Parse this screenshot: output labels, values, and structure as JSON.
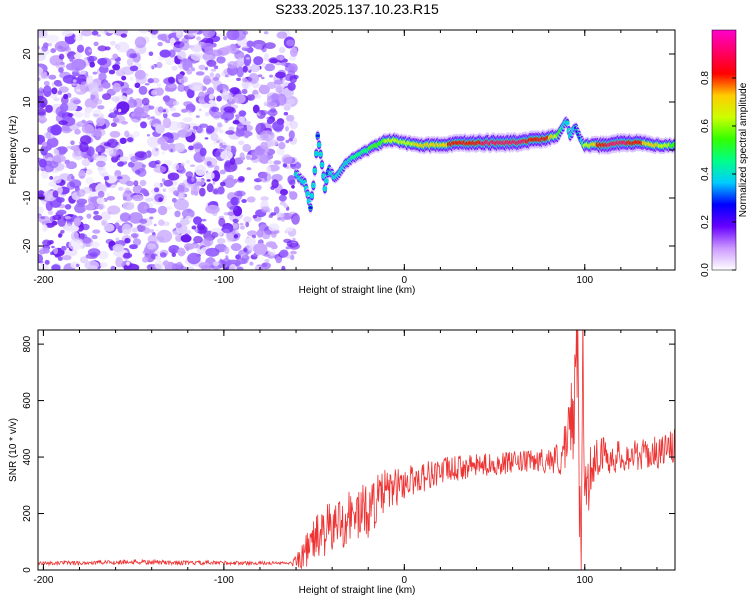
{
  "figure": {
    "title": "S233.2025.137.10.23.R15"
  },
  "chart_data": [
    {
      "type": "heatmap",
      "xlabel": "Height of straight line (km)",
      "ylabel": "Frequency (Hz)",
      "xlim": [
        -203,
        150
      ],
      "ylim": [
        -25,
        25
      ],
      "xticks": [
        -200,
        -100,
        0,
        100
      ],
      "yticks": [
        -20,
        -10,
        0,
        10,
        20
      ],
      "grid": false,
      "colorbar": {
        "label": "Normalized spectral amplitude",
        "range": [
          0,
          1
        ],
        "ticks": [
          "0.0",
          "0.2",
          "0.4",
          "0.6",
          "0.8"
        ],
        "colors": [
          "#ffffff",
          "#cc99ff",
          "#6600ff",
          "#0000ff",
          "#00ccff",
          "#00ff88",
          "#33ff00",
          "#ccff00",
          "#ffcc00",
          "#ff0000",
          "#ff0066",
          "#ff00cc"
        ]
      },
      "noise_region": {
        "x": [
          -203,
          -60
        ],
        "f": [
          -25,
          25
        ]
      },
      "ridge": {
        "x": [
          -60,
          -55,
          -52,
          -50,
          -48,
          -46,
          -44,
          -42,
          -40,
          -38,
          -35,
          -30,
          -25,
          -20,
          -15,
          -10,
          -5,
          0,
          10,
          20,
          30,
          40,
          50,
          60,
          70,
          80,
          85,
          88,
          90,
          92,
          95,
          98,
          100,
          110,
          120,
          130,
          140,
          150
        ],
        "f": [
          -5,
          -7,
          -12,
          -6,
          3,
          -2,
          -8,
          -4,
          -5,
          -6,
          -4,
          -2,
          -1,
          0,
          1,
          2,
          2,
          1.5,
          1,
          1,
          1.5,
          1.5,
          1.5,
          1.5,
          2,
          2.5,
          3,
          5,
          6,
          3,
          5,
          2,
          1,
          1,
          1.5,
          1.5,
          1,
          1
        ],
        "amp": [
          0.35,
          0.4,
          0.3,
          0.4,
          0.3,
          0.35,
          0.35,
          0.3,
          0.35,
          0.35,
          0.4,
          0.4,
          0.45,
          0.5,
          0.55,
          0.6,
          0.6,
          0.65,
          0.7,
          0.75,
          0.8,
          0.85,
          0.9,
          0.9,
          0.85,
          0.8,
          0.6,
          0.4,
          0.35,
          0.4,
          0.3,
          0.3,
          0.6,
          0.85,
          0.9,
          0.8,
          0.7,
          0.55
        ]
      }
    },
    {
      "type": "line",
      "xlabel": "Height of straight line (km)",
      "ylabel": "SNR (10 * v/v)",
      "xlim": [
        -203,
        150
      ],
      "ylim": [
        0,
        850
      ],
      "xticks": [
        -200,
        -100,
        0,
        100
      ],
      "yticks": [
        0,
        200,
        400,
        600,
        800
      ],
      "grid": false,
      "series": [
        {
          "color": "#ee3333",
          "x": [
            -203,
            -180,
            -150,
            -120,
            -100,
            -80,
            -62,
            -55,
            -50,
            -45,
            -40,
            -35,
            -30,
            -25,
            -20,
            -15,
            -10,
            -5,
            0,
            10,
            20,
            30,
            40,
            50,
            60,
            70,
            80,
            85,
            90,
            94,
            96,
            97,
            98,
            99,
            100,
            101,
            102,
            104,
            108,
            115,
            125,
            135,
            145,
            150
          ],
          "values": [
            20,
            22,
            25,
            22,
            22,
            22,
            22,
            60,
            110,
            130,
            150,
            170,
            190,
            200,
            210,
            250,
            280,
            290,
            310,
            330,
            350,
            360,
            370,
            375,
            380,
            385,
            390,
            395,
            420,
            600,
            780,
            300,
            60,
            850,
            120,
            400,
            300,
            380,
            410,
            400,
            405,
            410,
            425,
            440
          ],
          "noise": [
            15,
            15,
            18,
            15,
            15,
            12,
            10,
            60,
            80,
            90,
            100,
            100,
            100,
            100,
            100,
            90,
            80,
            70,
            60,
            55,
            50,
            45,
            40,
            40,
            40,
            40,
            45,
            60,
            120,
            200,
            200,
            200,
            100,
            100,
            100,
            150,
            120,
            80,
            70,
            60,
            55,
            55,
            60,
            60
          ]
        }
      ]
    }
  ]
}
